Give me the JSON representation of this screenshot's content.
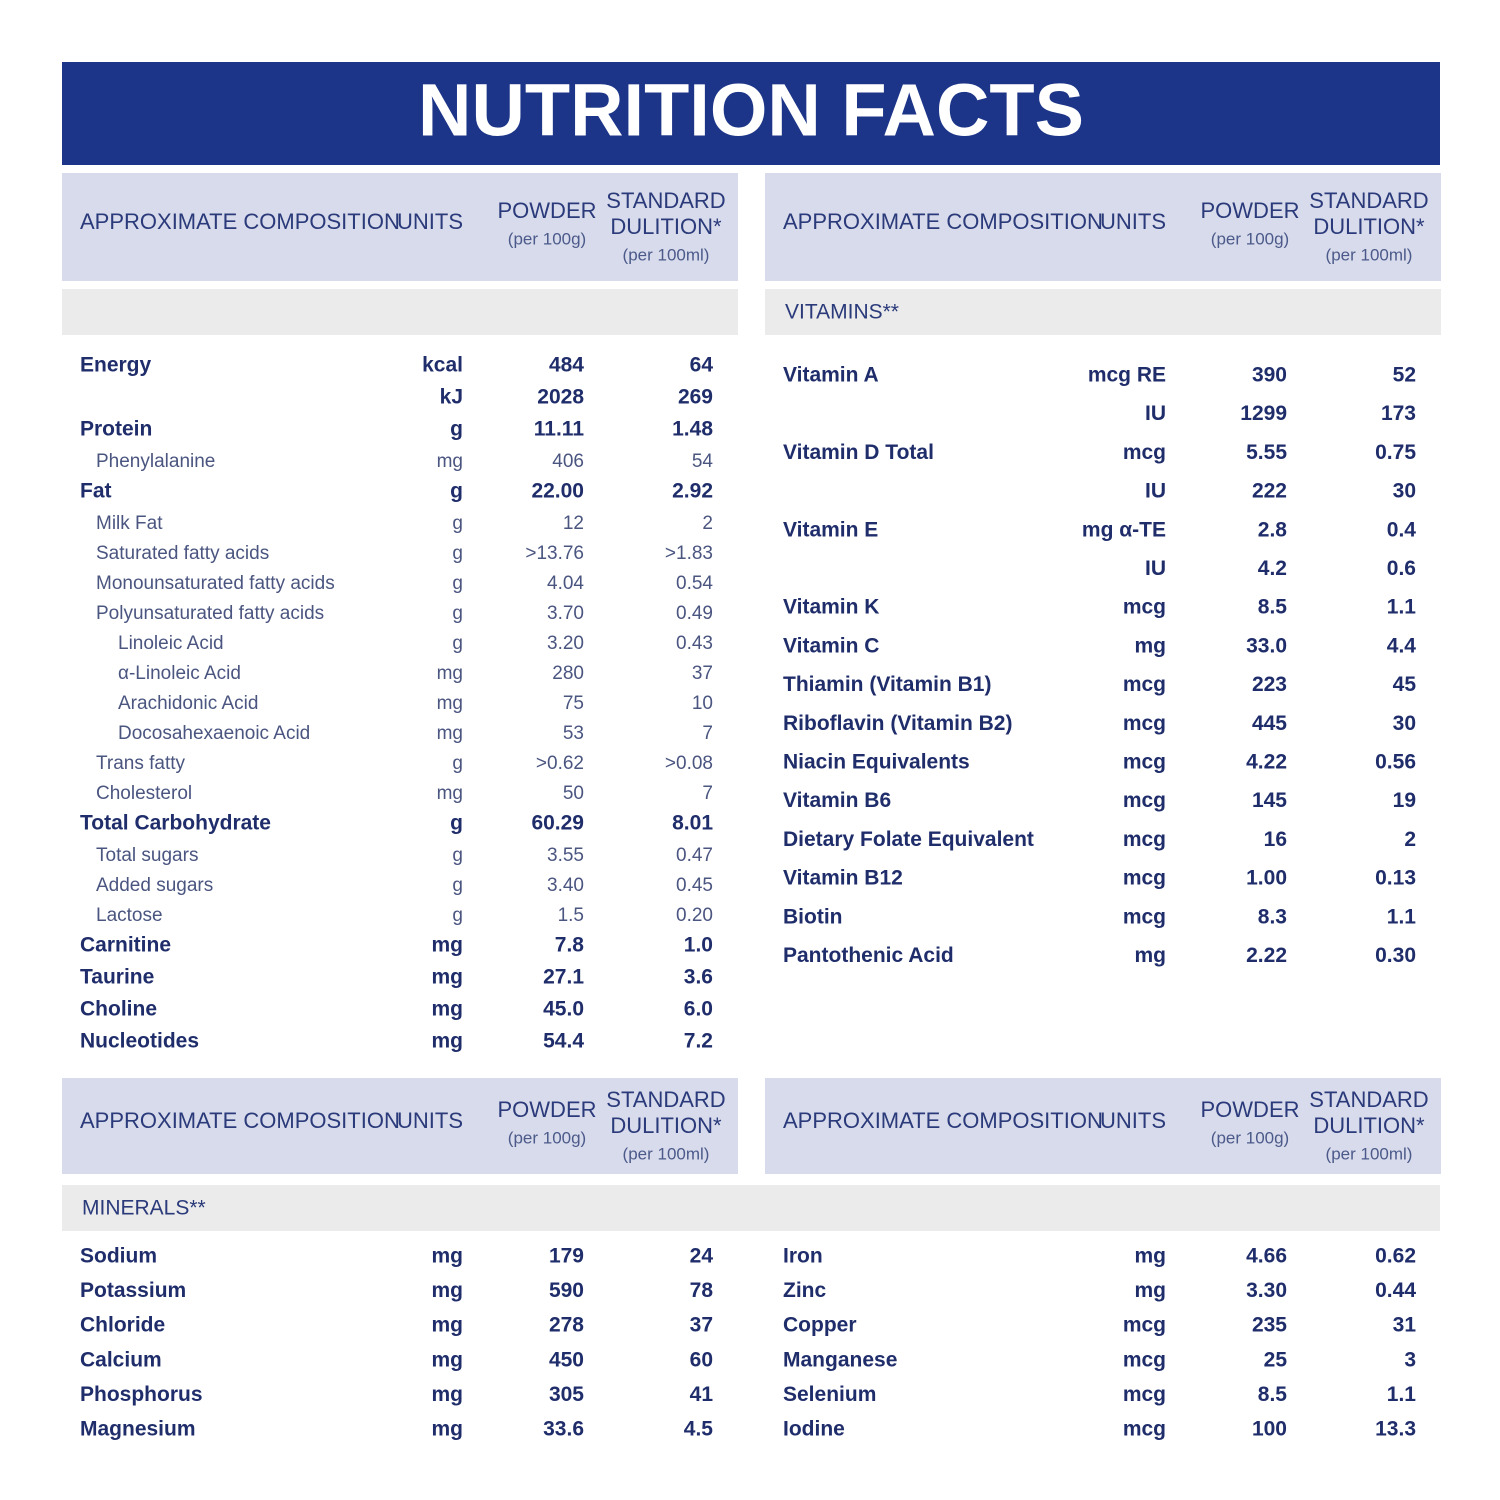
{
  "title": "NUTRITION FACTS",
  "column_headers": {
    "composition": "APPROXIMATE COMPOSITION",
    "units": "UNITS",
    "powder": "POWDER",
    "powder_basis": "(per 100g)",
    "dilution": [
      "STANDARD",
      "DULITION*"
    ],
    "dilution_basis": "(per 100ml)"
  },
  "tables": [
    {
      "rows": [
        {
          "name": "Energy",
          "unit": "kcal",
          "powder": "484",
          "dilution": "64",
          "indent": 0
        },
        {
          "name": null,
          "unit": "kJ",
          "powder": "2028",
          "dilution": "269",
          "indent": 0
        },
        {
          "name": "Protein",
          "unit": "g",
          "powder": "11.11",
          "dilution": "1.48",
          "indent": 0
        },
        {
          "name": "Phenylalanine",
          "unit": "mg",
          "powder": "406",
          "dilution": "54",
          "indent": 1
        },
        {
          "name": "Fat",
          "unit": "g",
          "powder": "22.00",
          "dilution": "2.92",
          "indent": 0
        },
        {
          "name": "Milk Fat",
          "unit": "g",
          "powder": "12",
          "dilution": "2",
          "indent": 1
        },
        {
          "name": "Saturated fatty acids",
          "unit": "g",
          "powder": ">13.76",
          "dilution": ">1.83",
          "indent": 1
        },
        {
          "name": "Monounsaturated fatty acids",
          "unit": "g",
          "powder": "4.04",
          "dilution": "0.54",
          "indent": 1
        },
        {
          "name": "Polyunsaturated fatty acids",
          "unit": "g",
          "powder": "3.70",
          "dilution": "0.49",
          "indent": 1
        },
        {
          "name": "Linoleic Acid",
          "unit": "g",
          "powder": "3.20",
          "dilution": "0.43",
          "indent": 2
        },
        {
          "name": "α-Linoleic Acid",
          "unit": "mg",
          "powder": "280",
          "dilution": "37",
          "indent": 2
        },
        {
          "name": "Arachidonic Acid",
          "unit": "mg",
          "powder": "75",
          "dilution": "10",
          "indent": 2
        },
        {
          "name": "Docosahexaenoic Acid",
          "unit": "mg",
          "powder": "53",
          "dilution": "7",
          "indent": 2
        },
        {
          "name": "Trans fatty",
          "unit": "g",
          "powder": ">0.62",
          "dilution": ">0.08",
          "indent": 1
        },
        {
          "name": "Cholesterol",
          "unit": "mg",
          "powder": "50",
          "dilution": "7",
          "indent": 1
        },
        {
          "name": "Total Carbohydrate",
          "unit": "g",
          "powder": "60.29",
          "dilution": "8.01",
          "indent": 0
        },
        {
          "name": "Total sugars",
          "unit": "g",
          "powder": "3.55",
          "dilution": "0.47",
          "indent": 1
        },
        {
          "name": "Added sugars",
          "unit": "g",
          "powder": "3.40",
          "dilution": "0.45",
          "indent": 1
        },
        {
          "name": "Lactose",
          "unit": "g",
          "powder": "1.5",
          "dilution": "0.20",
          "indent": 1
        },
        {
          "name": "Carnitine",
          "unit": "mg",
          "powder": "7.8",
          "dilution": "1.0",
          "indent": 0
        },
        {
          "name": "Taurine",
          "unit": "mg",
          "powder": "27.1",
          "dilution": "3.6",
          "indent": 0
        },
        {
          "name": "Choline",
          "unit": "mg",
          "powder": "45.0",
          "dilution": "6.0",
          "indent": 0
        },
        {
          "name": "Nucleotides",
          "unit": "mg",
          "powder": "54.4",
          "dilution": "7.2",
          "indent": 0
        }
      ]
    },
    {
      "section": "VITAMINS**",
      "rows": [
        {
          "name": "Vitamin A",
          "unit": "mcg RE",
          "powder": "390",
          "dilution": "52",
          "indent": 0
        },
        {
          "name": null,
          "unit": "IU",
          "powder": "1299",
          "dilution": "173",
          "indent": 0
        },
        {
          "name": "Vitamin D Total",
          "unit": "mcg",
          "powder": "5.55",
          "dilution": "0.75",
          "indent": 0
        },
        {
          "name": null,
          "unit": "IU",
          "powder": "222",
          "dilution": "30",
          "indent": 0
        },
        {
          "name": "Vitamin E",
          "unit": "mg α-TE",
          "powder": "2.8",
          "dilution": "0.4",
          "indent": 0
        },
        {
          "name": null,
          "unit": "IU",
          "powder": "4.2",
          "dilution": "0.6",
          "indent": 0
        },
        {
          "name": "Vitamin K",
          "unit": "mcg",
          "powder": "8.5",
          "dilution": "1.1",
          "indent": 0
        },
        {
          "name": "Vitamin C",
          "unit": "mg",
          "powder": "33.0",
          "dilution": "4.4",
          "indent": 0
        },
        {
          "name": "Thiamin (Vitamin B1)",
          "unit": "mcg",
          "powder": "223",
          "dilution": "45",
          "indent": 0
        },
        {
          "name": "Riboflavin (Vitamin B2)",
          "unit": "mcg",
          "powder": "445",
          "dilution": "30",
          "indent": 0
        },
        {
          "name": "Niacin Equivalents",
          "unit": "mcg",
          "powder": "4.22",
          "dilution": "0.56",
          "indent": 0
        },
        {
          "name": "Vitamin B6",
          "unit": "mcg",
          "powder": "145",
          "dilution": "19",
          "indent": 0
        },
        {
          "name": "Dietary Folate Equivalent",
          "unit": "mcg",
          "powder": "16",
          "dilution": "2",
          "indent": 0
        },
        {
          "name": "Vitamin B12",
          "unit": "mcg",
          "powder": "1.00",
          "dilution": "0.13",
          "indent": 0
        },
        {
          "name": "Biotin",
          "unit": "mcg",
          "powder": "8.3",
          "dilution": "1.1",
          "indent": 0
        },
        {
          "name": "Pantothenic Acid",
          "unit": "mg",
          "powder": "2.22",
          "dilution": "0.30",
          "indent": 0
        }
      ]
    },
    {
      "section": "MINERALS**",
      "rows": [
        {
          "name": "Sodium",
          "unit": "mg",
          "powder": "179",
          "dilution": "24",
          "indent": 0
        },
        {
          "name": "Potassium",
          "unit": "mg",
          "powder": "590",
          "dilution": "78",
          "indent": 0
        },
        {
          "name": "Chloride",
          "unit": "mg",
          "powder": "278",
          "dilution": "37",
          "indent": 0
        },
        {
          "name": "Calcium",
          "unit": "mg",
          "powder": "450",
          "dilution": "60",
          "indent": 0
        },
        {
          "name": "Phosphorus",
          "unit": "mg",
          "powder": "305",
          "dilution": "41",
          "indent": 0
        },
        {
          "name": "Magnesium",
          "unit": "mg",
          "powder": "33.6",
          "dilution": "4.5",
          "indent": 0
        }
      ]
    },
    {
      "rows": [
        {
          "name": "Iron",
          "unit": "mg",
          "powder": "4.66",
          "dilution": "0.62",
          "indent": 0
        },
        {
          "name": "Zinc",
          "unit": "mg",
          "powder": "3.30",
          "dilution": "0.44",
          "indent": 0
        },
        {
          "name": "Copper",
          "unit": "mcg",
          "powder": "235",
          "dilution": "31",
          "indent": 0
        },
        {
          "name": "Manganese",
          "unit": "mcg",
          "powder": "25",
          "dilution": "3",
          "indent": 0
        },
        {
          "name": "Selenium",
          "unit": "mcg",
          "powder": "8.5",
          "dilution": "1.1",
          "indent": 0
        },
        {
          "name": "Iodine",
          "unit": "mcg",
          "powder": "100",
          "dilution": "13.3",
          "indent": 0
        }
      ]
    }
  ]
}
